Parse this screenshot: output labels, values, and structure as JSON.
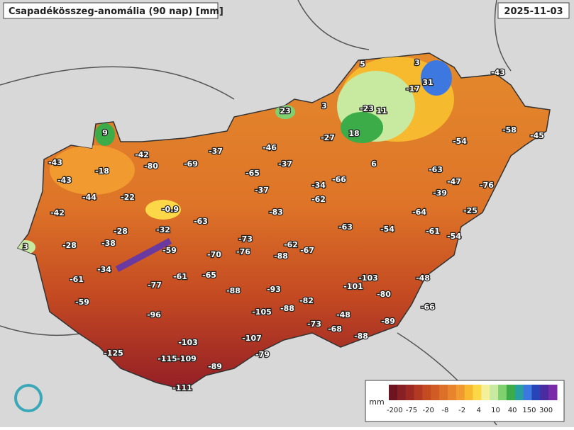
{
  "header": {
    "title": "Csapadékösszeg-anomália (90 nap) [mm]",
    "date": "2025-11-03"
  },
  "stations": [
    5,
    3,
    31,
    -43,
    -17,
    23,
    3,
    -23,
    11,
    9,
    18,
    -58,
    -45,
    -27,
    -54,
    -46,
    -37,
    -42,
    -43,
    -80,
    -69,
    -37,
    6,
    -18,
    -65,
    -63,
    -43,
    -66,
    -34,
    -47,
    -76,
    -37,
    -44,
    -22,
    -62,
    -39,
    -0.9,
    -42,
    -83,
    -64,
    -25,
    -63,
    -28,
    -32,
    -63,
    -54,
    -61,
    -73,
    -54,
    3,
    -28,
    -38,
    -62,
    -67,
    -59,
    -76,
    -70,
    -88,
    -34,
    -61,
    -103,
    -48,
    -61,
    -65,
    -101,
    -77,
    -88,
    -93,
    -80,
    -59,
    -82,
    -105,
    -88,
    -66,
    -96,
    -48,
    -89,
    -73,
    -68,
    -107,
    -88,
    -103,
    -79,
    -125,
    -115,
    -109,
    -89,
    -111
  ],
  "legend": {
    "unit": "mm",
    "ticks": [
      -200,
      -75,
      -20,
      -8,
      -2,
      4,
      10,
      40,
      150,
      300
    ],
    "colors": [
      "#6e1420",
      "#862024",
      "#9c2a22",
      "#b23a22",
      "#c44a22",
      "#d05c24",
      "#dc7028",
      "#e8842c",
      "#f09a30",
      "#f8b830",
      "#fcd848",
      "#f4f09a",
      "#c8eaa0",
      "#80d070",
      "#3cac48",
      "#28a0a0",
      "#3c78e0",
      "#2844b8",
      "#4a2ca0",
      "#7a2ca8"
    ]
  }
}
